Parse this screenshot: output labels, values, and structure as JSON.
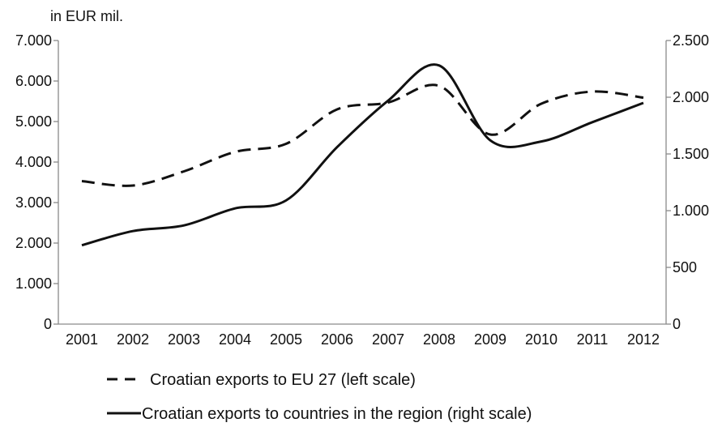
{
  "chart_data": {
    "type": "line",
    "unit_label": "in EUR mil.",
    "categories": [
      "2001",
      "2002",
      "2003",
      "2004",
      "2005",
      "2006",
      "2007",
      "2008",
      "2009",
      "2010",
      "2011",
      "2012"
    ],
    "left_axis": {
      "ylim": [
        0,
        7000
      ],
      "ticks": [
        0,
        1000,
        2000,
        3000,
        4000,
        5000,
        6000,
        7000
      ],
      "tick_labels": [
        "0",
        "1.000",
        "2.000",
        "3.000",
        "4.000",
        "5.000",
        "6.000",
        "7.000"
      ]
    },
    "right_axis": {
      "ylim": [
        0,
        2500
      ],
      "ticks": [
        0,
        500,
        1000,
        1500,
        2000,
        2500
      ],
      "tick_labels": [
        "0",
        "500",
        "1.000",
        "1.500",
        "2.000",
        "2.500"
      ]
    },
    "series": [
      {
        "name": "Croatian exports to EU 27 (left scale)",
        "axis": "left",
        "style": "dashed",
        "color": "#111111",
        "values": [
          3530,
          3420,
          3770,
          4250,
          4450,
          5300,
          5470,
          5880,
          4680,
          5440,
          5740,
          5590
        ]
      },
      {
        "name": "Croatian exports to countries in the region (right scale)",
        "axis": "right",
        "style": "solid",
        "color": "#111111",
        "values": [
          695,
          820,
          870,
          1020,
          1090,
          1560,
          1970,
          2280,
          1620,
          1610,
          1780,
          1950
        ]
      }
    ],
    "legend_position": "bottom",
    "grid": false
  }
}
